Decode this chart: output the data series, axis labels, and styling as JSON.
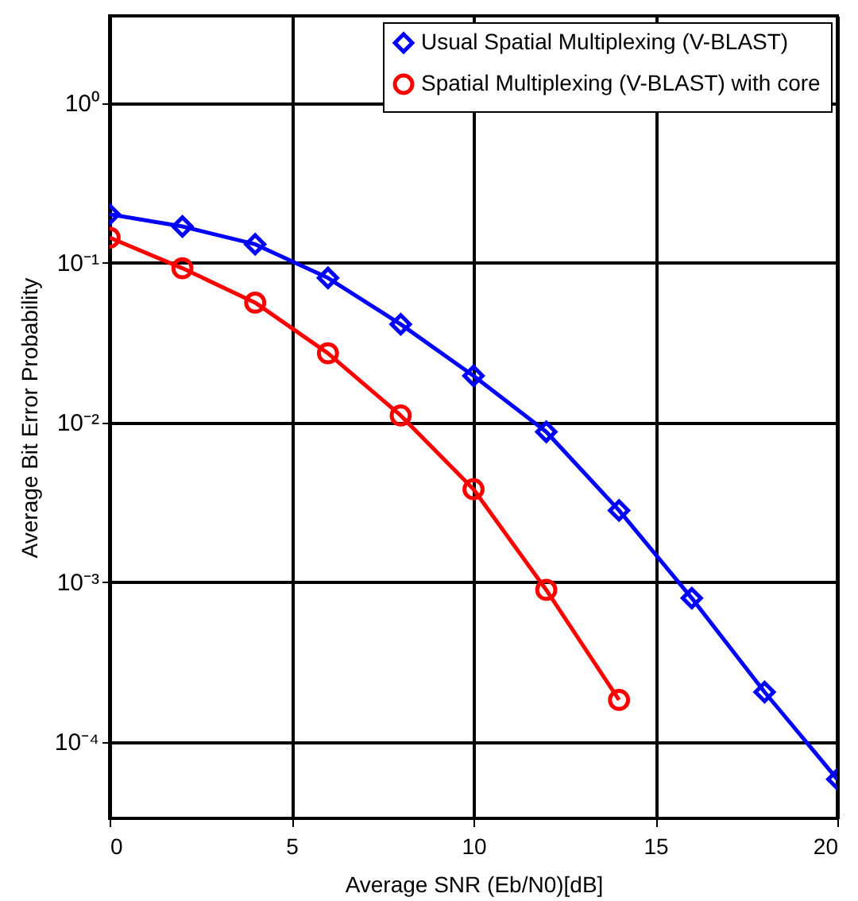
{
  "chart_data": {
    "type": "line",
    "xlabel": "Average SNR (Eb/N0)[dB]",
    "ylabel": "Average Bit Error Probability",
    "x": [
      0,
      2,
      4,
      6,
      8,
      10,
      12,
      14,
      16,
      18,
      20
    ],
    "series": [
      {
        "name": "Usual Spatial Multiplexing (V-BLAST)",
        "color": "#0000ff",
        "marker": "diamond",
        "values": [
          0.2,
          0.168,
          0.13,
          0.08,
          0.041,
          0.0195,
          0.0087,
          0.0028,
          0.00079,
          0.000204,
          5.8e-05
        ]
      },
      {
        "name": "Spatial Multiplexing (V-BLAST) with core",
        "color": "#ff0000",
        "marker": "circle",
        "values": [
          0.143,
          0.092,
          0.056,
          0.027,
          0.011,
          0.0038,
          0.00089,
          0.000182,
          null,
          null,
          null
        ]
      }
    ],
    "xlim": [
      0,
      20
    ],
    "xticks": [
      0,
      5,
      10,
      15,
      20
    ],
    "ylim": [
      3.3e-05,
      3.5
    ],
    "yticks": [
      {
        "value": 0.0001,
        "label": "10⁻⁴"
      },
      {
        "value": 0.001,
        "label": "10⁻³"
      },
      {
        "value": 0.01,
        "label": "10⁻²"
      },
      {
        "value": 0.1,
        "label": "10⁻¹"
      },
      {
        "value": 1,
        "label": "10⁰"
      }
    ],
    "log": "y",
    "grid": true,
    "legend": "top right",
    "line_style": "solid"
  }
}
